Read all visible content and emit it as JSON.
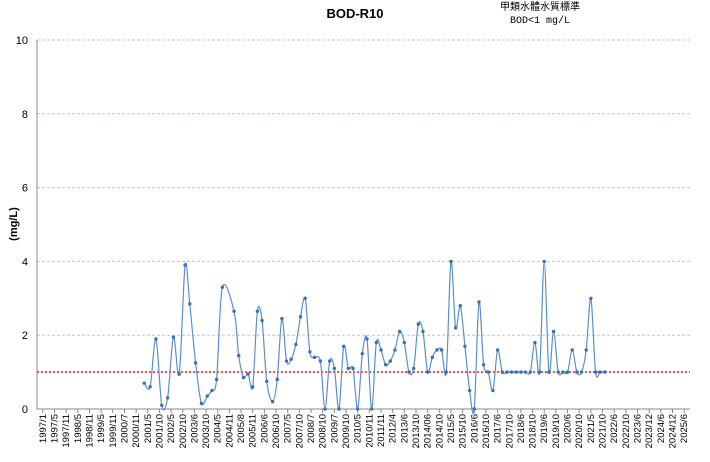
{
  "chart_data": {
    "type": "line",
    "title": "BOD-R10",
    "standard_line1": "甲類水體水質標準",
    "standard_line2": "BOD<1 mg/L",
    "standard_value": 1,
    "ylabel": "(mg/L)",
    "ylim": [
      0,
      10
    ],
    "yticks": [
      0,
      2,
      4,
      6,
      8,
      10
    ],
    "x_ticks": [
      "1997/1",
      "1997/5",
      "1997/11",
      "1998/5",
      "1998/11",
      "1999/5",
      "1999/11",
      "2000/7",
      "2000/11",
      "2001/5",
      "2001/10",
      "2002/5",
      "2002/10",
      "2003/6",
      "2003/10",
      "2004/5",
      "2004/11",
      "2005/8",
      "2005/11",
      "2006/6",
      "2006/10",
      "2007/5",
      "2007/10",
      "2008/7",
      "2008/10",
      "2009/7",
      "2009/10",
      "2010/5",
      "2010/11",
      "2011/11",
      "2012/4",
      "2013/6",
      "2013/10",
      "2014/06",
      "2014/10",
      "2015/5",
      "2015/10",
      "2016/6",
      "2016/10",
      "2017/6",
      "2017/10",
      "2018/6",
      "2018/10",
      "2019/6",
      "2019/10",
      "2020/6",
      "2020/10",
      "2021/5",
      "2021/10",
      "2022/6",
      "2022/10",
      "2023/6",
      "2023/12",
      "2024/6",
      "2024/12",
      "2025/6"
    ],
    "series": [
      {
        "values": [
          [
            8.7,
            0.7
          ],
          [
            9.2,
            0.6
          ],
          [
            9.7,
            1.9
          ],
          [
            10.2,
            0.1
          ],
          [
            10.7,
            0.3
          ],
          [
            11.2,
            1.95
          ],
          [
            11.7,
            0.95
          ],
          [
            12.2,
            3.9
          ],
          [
            12.6,
            2.85
          ],
          [
            13.1,
            1.25
          ],
          [
            13.6,
            0.15
          ],
          [
            14.1,
            0.35
          ],
          [
            14.5,
            0.5
          ],
          [
            14.9,
            0.8
          ],
          [
            15.4,
            3.3
          ],
          [
            16.4,
            2.65
          ],
          [
            16.8,
            1.45
          ],
          [
            17.2,
            0.85
          ],
          [
            17.6,
            0.95
          ],
          [
            18.0,
            0.6
          ],
          [
            18.4,
            2.65
          ],
          [
            18.8,
            2.4
          ],
          [
            19.2,
            0.75
          ],
          [
            19.7,
            0.2
          ],
          [
            20.1,
            0.8
          ],
          [
            20.5,
            2.45
          ],
          [
            20.9,
            1.3
          ],
          [
            21.3,
            1.35
          ],
          [
            21.7,
            1.75
          ],
          [
            22.1,
            2.5
          ],
          [
            22.5,
            3.0
          ],
          [
            22.9,
            1.55
          ],
          [
            23.3,
            1.4
          ],
          [
            23.8,
            1.3
          ],
          [
            24.2,
            0.0
          ],
          [
            24.6,
            1.3
          ],
          [
            25.0,
            1.1
          ],
          [
            25.4,
            0.0
          ],
          [
            25.8,
            1.7
          ],
          [
            26.2,
            1.1
          ],
          [
            26.6,
            1.1
          ],
          [
            27.0,
            0.0
          ],
          [
            27.4,
            1.5
          ],
          [
            27.8,
            1.9
          ],
          [
            28.2,
            0.0
          ],
          [
            28.6,
            1.8
          ],
          [
            29.0,
            1.6
          ],
          [
            29.4,
            1.2
          ],
          [
            29.8,
            1.3
          ],
          [
            30.2,
            1.6
          ],
          [
            30.6,
            2.1
          ],
          [
            31.0,
            1.8
          ],
          [
            31.4,
            1.0
          ],
          [
            31.8,
            1.1
          ],
          [
            32.2,
            2.3
          ],
          [
            32.6,
            2.1
          ],
          [
            33.0,
            1.0
          ],
          [
            33.4,
            1.4
          ],
          [
            33.8,
            1.6
          ],
          [
            34.2,
            1.6
          ],
          [
            34.6,
            1.0
          ],
          [
            35.0,
            4.0
          ],
          [
            35.4,
            2.2
          ],
          [
            35.8,
            2.8
          ],
          [
            36.2,
            1.7
          ],
          [
            36.6,
            0.5
          ],
          [
            37.0,
            0.0
          ],
          [
            37.4,
            2.9
          ],
          [
            37.8,
            1.2
          ],
          [
            38.2,
            1.0
          ],
          [
            38.6,
            0.5
          ],
          [
            39.0,
            1.6
          ],
          [
            39.4,
            1.0
          ],
          [
            39.8,
            1.0
          ],
          [
            40.2,
            1.0
          ],
          [
            40.6,
            1.0
          ],
          [
            41.0,
            1.0
          ],
          [
            41.4,
            1.0
          ],
          [
            41.8,
            1.0
          ],
          [
            42.2,
            1.8
          ],
          [
            42.6,
            1.0
          ],
          [
            43.0,
            4.0
          ],
          [
            43.4,
            1.0
          ],
          [
            43.8,
            2.1
          ],
          [
            44.2,
            1.0
          ],
          [
            44.6,
            1.0
          ],
          [
            45.0,
            1.0
          ],
          [
            45.4,
            1.6
          ],
          [
            45.8,
            1.0
          ],
          [
            46.2,
            1.0
          ],
          [
            46.6,
            1.6
          ],
          [
            47.0,
            3.0
          ],
          [
            47.4,
            1.0
          ],
          [
            47.8,
            1.0
          ],
          [
            48.2,
            1.0
          ]
        ]
      }
    ],
    "colors": {
      "series": "#5b8fc9",
      "marker": "#3a6fb0",
      "standard": "#e83030",
      "grid": "#b9c6e4"
    },
    "grid": true
  }
}
